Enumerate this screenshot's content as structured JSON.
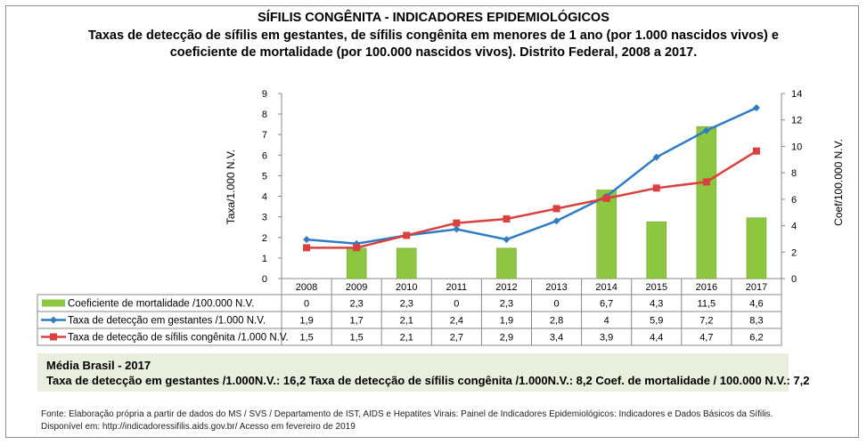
{
  "title": "SÍFILIS CONGÊNITA - INDICADORES EPIDEMIOLÓGICOS",
  "subtitle_line1": "Taxas de detecção de sífilis em gestantes, de sífilis congênita em menores de 1 ano (por 1.000 nascidos vivos) e",
  "subtitle_line2": "coeficiente de mortalidade (por 100.000 nascidos vivos). Distrito Federal, 2008 a 2017.",
  "chart_data": {
    "type": "bar+line",
    "categories": [
      "2008",
      "2009",
      "2010",
      "2011",
      "2012",
      "2013",
      "2014",
      "2015",
      "2016",
      "2017"
    ],
    "ylabel_left": "Taxa/1.000 N.V.",
    "ylabel_right": "Coef/100.000 N.V.",
    "ylim_left": [
      0,
      9
    ],
    "ylim_right": [
      0,
      14
    ],
    "yticks_left": [
      "0",
      "1",
      "2",
      "3",
      "4",
      "5",
      "6",
      "7",
      "8",
      "9"
    ],
    "yticks_right": [
      "0",
      "2",
      "4",
      "6",
      "8",
      "10",
      "12",
      "14"
    ],
    "grid": false,
    "legend": "data-table",
    "series": [
      {
        "name": "Coeficiente de mortalidade /100.000 N.V.",
        "type": "bar",
        "axis": "right",
        "color": "#8dc63f",
        "values": [
          0,
          2.3,
          2.3,
          0,
          2.3,
          0,
          6.7,
          4.3,
          11.5,
          4.6
        ],
        "labels": [
          "0",
          "2,3",
          "2,3",
          "0",
          "2,3",
          "0",
          "6,7",
          "4,3",
          "11,5",
          "4,6"
        ]
      },
      {
        "name": "Taxa de detecção em gestantes /1.000 N.V.",
        "type": "line",
        "axis": "left",
        "color": "#2e7cc4",
        "values": [
          1.9,
          1.7,
          2.1,
          2.4,
          1.9,
          2.8,
          4,
          5.9,
          7.2,
          8.3
        ],
        "labels": [
          "1,9",
          "1,7",
          "2,1",
          "2,4",
          "1,9",
          "2,8",
          "4",
          "5,9",
          "7,2",
          "8,3"
        ]
      },
      {
        "name": "Taxa de detecção de sífilis congênita /1.000 N.V.",
        "type": "line",
        "axis": "left",
        "color": "#d9403f",
        "values": [
          1.5,
          1.5,
          2.1,
          2.7,
          2.9,
          3.4,
          3.9,
          4.4,
          4.7,
          6.2
        ],
        "labels": [
          "1,5",
          "1,5",
          "2,1",
          "2,7",
          "2,9",
          "3,4",
          "3,9",
          "4,4",
          "4,7",
          "6,2"
        ]
      }
    ]
  },
  "brasil": {
    "heading": "Média Brasil  - 2017",
    "line": "Taxa  de detecção  em gestantes  /1.000N.V.: 16,2    Taxa  de detecção  de sífilis  congênita  /1.000N.V.: 8,2    Coef. de  mortalidade  / 100.000 N.V.: 7,2"
  },
  "source_line1": "Fonte: Elaboração própria a partir de dados do MS / SVS / Departamento de IST, AIDS e Hepatites Virais:  Painel de Indicadores Epidemiológicos: Indicadores e Dados Básicos da Sífilis.",
  "source_line2": "Disponível em: http://indicadoressifilis.aids.gov.br/    Acesso em fevereiro de 2019"
}
